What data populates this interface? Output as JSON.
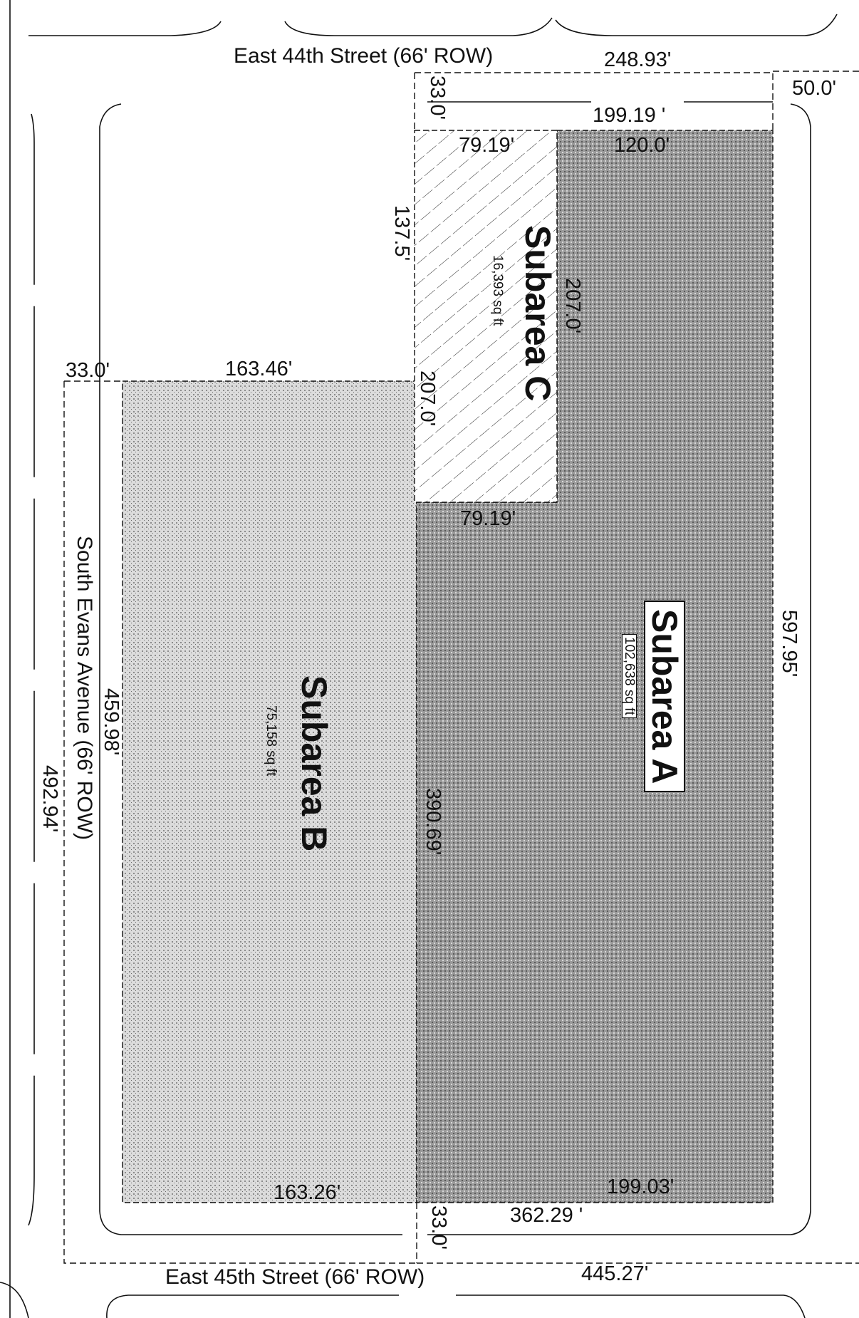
{
  "streets": {
    "north": "East 44th Street (66' ROW)",
    "south": "East 45th Street (66' ROW)",
    "west": "South Evans Avenue (66' ROW)"
  },
  "subareas": [
    {
      "id": "A",
      "name": "Subarea A",
      "area": "102,638 sq ft",
      "fill": "#8a8a8a"
    },
    {
      "id": "B",
      "name": "Subarea B",
      "area": "75,158 sq ft",
      "fill": "#b5b5b5"
    },
    {
      "id": "C",
      "name": "Subarea C",
      "area": "16,393 sq ft",
      "fill": "hatched"
    }
  ],
  "dimensions": {
    "top_total": "248.93'",
    "top_right_offset": "50.0'",
    "top_row_left": "33.0'",
    "top_inner": "199.19 '",
    "c_top": "79.19'",
    "a_top": "120.0'",
    "c_left": "137.5'",
    "c_right": "207.0'",
    "c_left_lower": "207.0'",
    "c_bottom": "79.19'",
    "b_row_left": "33.0'",
    "b_top": "163.46'",
    "a_right": "597.95'",
    "b_left": "459.98'",
    "west_total": "492.94'",
    "a_left": "390.69'",
    "b_bottom": "163.26'",
    "a_bottom": "199.03'",
    "bottom_row_left": "33.0'",
    "bottom_inner": "362.29 '",
    "bottom_total": "445.27'"
  },
  "colors": {
    "line": "#111111",
    "subarea_a": "#8a8a8a",
    "subarea_b": "#b5b5b5"
  }
}
